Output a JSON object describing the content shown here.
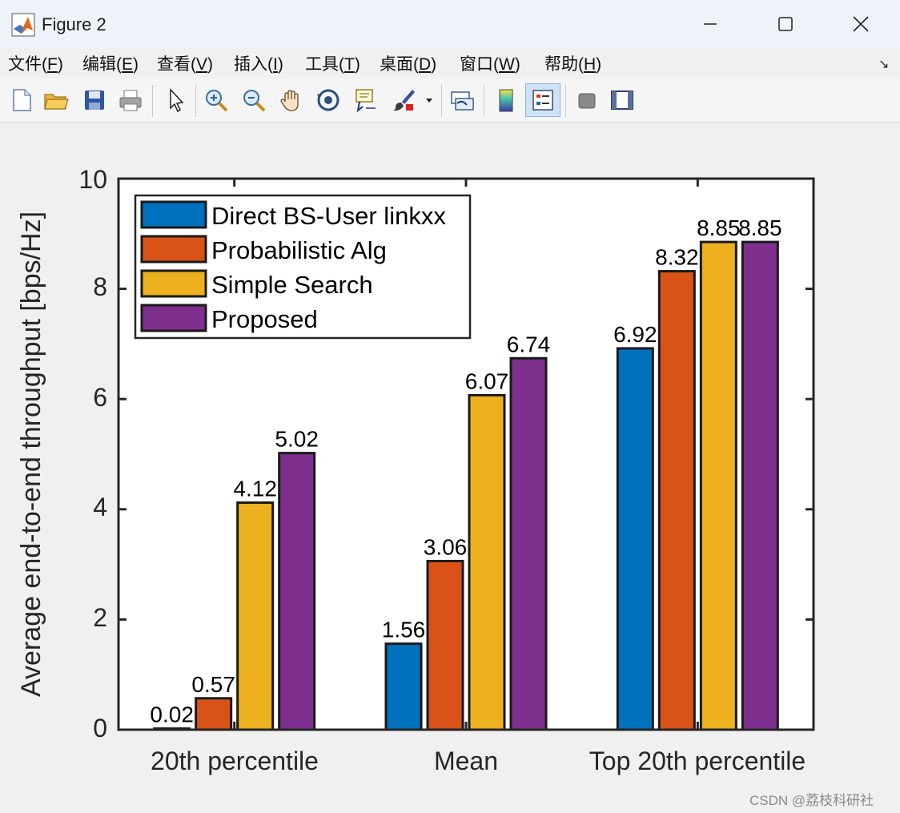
{
  "window": {
    "title": "Figure 2",
    "controls": [
      "minimize",
      "maximize",
      "close"
    ]
  },
  "menu": {
    "items": [
      {
        "label": "文件(",
        "key": "F",
        "end": ")"
      },
      {
        "label": "编辑(",
        "key": "E",
        "end": ")"
      },
      {
        "label": "查看(",
        "key": "V",
        "end": ")"
      },
      {
        "label": "插入(",
        "key": "I",
        "end": ")"
      },
      {
        "label": "工具(",
        "key": "T",
        "end": ")"
      },
      {
        "label": "桌面(",
        "key": "D",
        "end": ")"
      },
      {
        "label": "窗口(",
        "key": "W",
        "end": ")"
      },
      {
        "label": "帮助(",
        "key": "H",
        "end": ")"
      }
    ],
    "corner_icon": "dock-arrow-icon"
  },
  "toolbar": {
    "buttons": [
      "new-figure-icon",
      "open-file-icon",
      "save-icon",
      "print-icon",
      "edit-plot-arrow-icon",
      "zoom-in-icon",
      "zoom-out-icon",
      "pan-hand-icon",
      "rotate-3d-icon",
      "data-cursor-icon",
      "brush-icon",
      "link-plot-icon",
      "colorbar-icon",
      "legend-icon",
      "hide-plot-tools-icon",
      "show-plot-tools-icon"
    ],
    "active": "legend-icon"
  },
  "chart_data": {
    "type": "bar",
    "ylabel": "Average end-to-end throughput [bps/Hz]",
    "ylim": [
      0,
      10
    ],
    "yticks": [
      "0",
      "2",
      "4",
      "6",
      "8",
      "10"
    ],
    "categories": [
      "20th percentile",
      "Mean",
      "Top 20th percentile"
    ],
    "series": [
      {
        "name": "Direct BS-User linkxx",
        "color": "#0072BD",
        "values": [
          0.02,
          1.56,
          6.92
        ],
        "labels": [
          "0.02",
          "1.56",
          "6.92"
        ]
      },
      {
        "name": "Probabilistic Alg",
        "color": "#D95319",
        "values": [
          0.57,
          3.06,
          8.32
        ],
        "labels": [
          "0.57",
          "3.06",
          "8.32"
        ]
      },
      {
        "name": "Simple Search",
        "color": "#EDB120",
        "values": [
          4.12,
          6.07,
          8.85
        ],
        "labels": [
          "4.12",
          "6.07",
          "8.85"
        ]
      },
      {
        "name": "Proposed",
        "color": "#7E2F8E",
        "values": [
          5.02,
          6.74,
          8.85
        ],
        "labels": [
          "5.02",
          "6.74",
          "8.85"
        ]
      }
    ],
    "legend": "top-left",
    "grid": false
  },
  "watermark": "CSDN @荔枝科研社"
}
